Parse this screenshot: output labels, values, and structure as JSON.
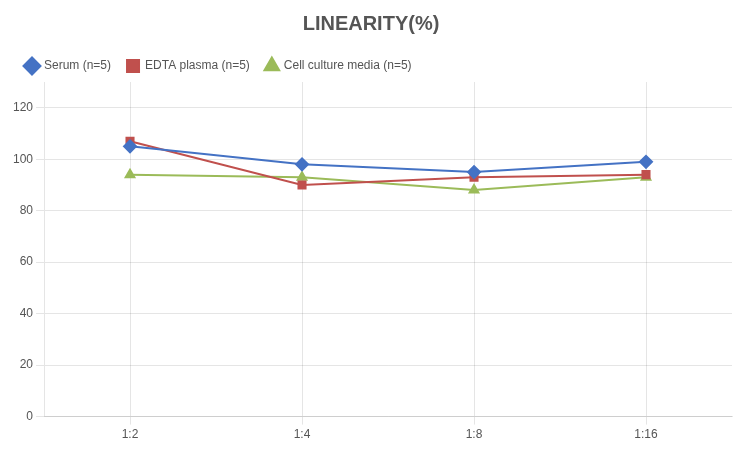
{
  "chart_data": {
    "type": "line",
    "title": "LINEARITY(%)",
    "categories": [
      "1:2",
      "1:4",
      "1:8",
      "1:16"
    ],
    "series": [
      {
        "name": "Serum (n=5)",
        "color": "#4472C4",
        "marker": "diamond",
        "values": [
          105,
          98,
          95,
          99
        ]
      },
      {
        "name": "EDTA plasma (n=5)",
        "color": "#C0504D",
        "marker": "square",
        "values": [
          107,
          90,
          93,
          94
        ]
      },
      {
        "name": "Cell culture media (n=5)",
        "color": "#9BBB59",
        "marker": "triangle",
        "values": [
          94,
          93,
          88,
          93
        ]
      }
    ],
    "ylim": [
      0,
      130
    ],
    "yticks": [
      0,
      20,
      40,
      60,
      80,
      100,
      120
    ],
    "grid": true,
    "legend": "top"
  }
}
